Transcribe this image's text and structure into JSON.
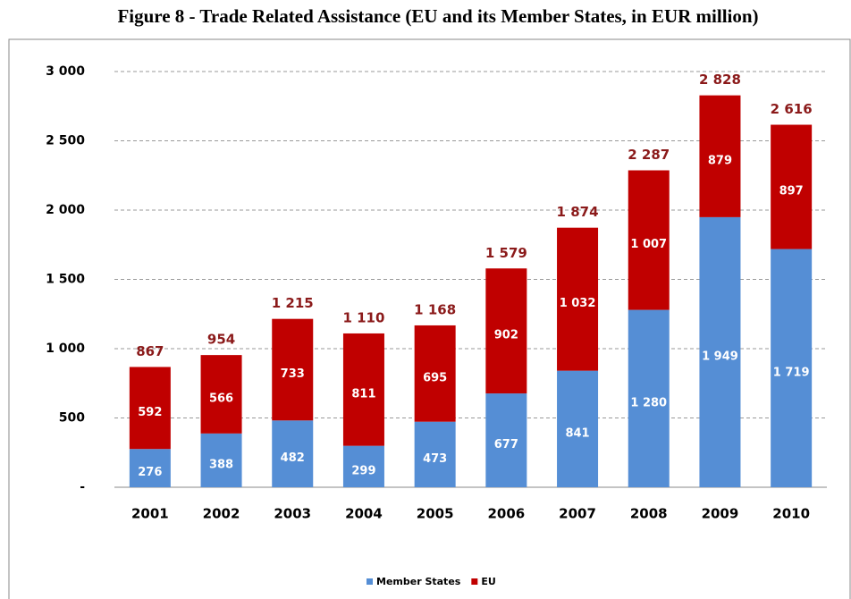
{
  "chart_data": {
    "type": "stacked_bar",
    "title": "Figure 8 - Trade Related Assistance (EU and its Member States, in EUR million)",
    "categories": [
      "2001",
      "2002",
      "2003",
      "2004",
      "2005",
      "2006",
      "2007",
      "2008",
      "2009",
      "2010"
    ],
    "series": [
      {
        "name": "Member States",
        "color": "#558ed5",
        "values": [
          276,
          388,
          482,
          299,
          473,
          677,
          841,
          1280,
          1949,
          1719
        ],
        "value_labels": [
          "276",
          "388",
          "482",
          "299",
          "473",
          "677",
          "841",
          "1 280",
          "1 949",
          "1 719"
        ]
      },
      {
        "name": "EU",
        "color": "#c00000",
        "values": [
          592,
          566,
          733,
          811,
          695,
          902,
          1032,
          1007,
          879,
          897
        ],
        "value_labels": [
          "592",
          "566",
          "733",
          "811",
          "695",
          "902",
          "1 032",
          "1 007",
          "879",
          "897"
        ]
      }
    ],
    "totals": [
      867,
      954,
      1215,
      1110,
      1168,
      1579,
      1874,
      2287,
      2828,
      2616
    ],
    "total_labels": [
      "867",
      "954",
      "1 215",
      "1 110",
      "1 168",
      "1 579",
      "1 874",
      "2 287",
      "2 828",
      "2 616"
    ],
    "ylim": [
      0,
      3000
    ],
    "yticks": [
      {
        "value": 0,
        "label": "-"
      },
      500,
      {
        "value": 1000,
        "label": "1 000"
      },
      {
        "value": 1500,
        "label": "1 500"
      },
      {
        "value": 2000,
        "label": "2 000"
      },
      {
        "value": 2500,
        "label": "2 500"
      },
      {
        "value": 3000,
        "label": "3 000"
      }
    ],
    "grid": true,
    "legend": "bottom"
  }
}
